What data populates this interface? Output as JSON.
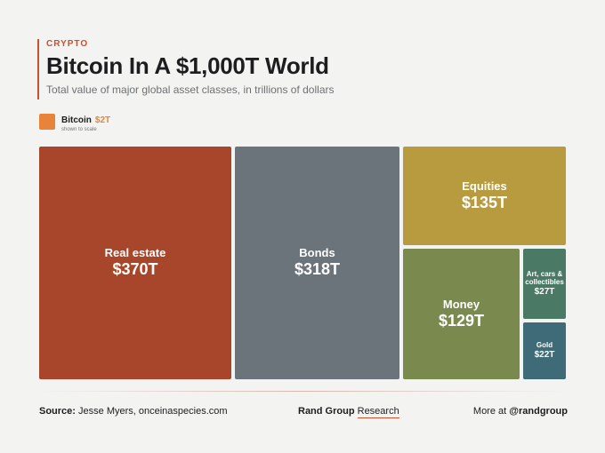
{
  "header": {
    "kicker": "CRYPTO",
    "title": "Bitcoin In A $1,000T World",
    "subtitle": "Total value of major global asset classes, in trillions of dollars"
  },
  "legend": {
    "name": "Bitcoin",
    "value": "$2T",
    "note": "shown to scale",
    "color": "#e8843a"
  },
  "chart_data": {
    "type": "treemap",
    "title": "Bitcoin In A $1,000T World",
    "subtitle": "Total value of major global asset classes, in trillions of dollars",
    "unit": "trillions of USD",
    "items": [
      {
        "name": "Real estate",
        "value": 370,
        "label": "$370T",
        "color": "#a8462b"
      },
      {
        "name": "Bonds",
        "value": 318,
        "label": "$318T",
        "color": "#6c747b"
      },
      {
        "name": "Equities",
        "value": 135,
        "label": "$135T",
        "color": "#b89a3f"
      },
      {
        "name": "Money",
        "value": 129,
        "label": "$129T",
        "color": "#7a8a4f"
      },
      {
        "name": "Art, cars & collectibles",
        "value": 27,
        "label": "$27T",
        "color": "#4a7a66"
      },
      {
        "name": "Gold",
        "value": 22,
        "label": "$22T",
        "color": "#3f6a78"
      },
      {
        "name": "Bitcoin",
        "value": 2,
        "label": "$2T",
        "color": "#e8843a"
      }
    ]
  },
  "footer": {
    "source_label": "Source:",
    "source_text": "Jesse Myers, onceinaspecies.com",
    "brand": "Rand Group",
    "brand_suffix": "Research",
    "more_text": "More at",
    "handle": "@randgroup"
  }
}
